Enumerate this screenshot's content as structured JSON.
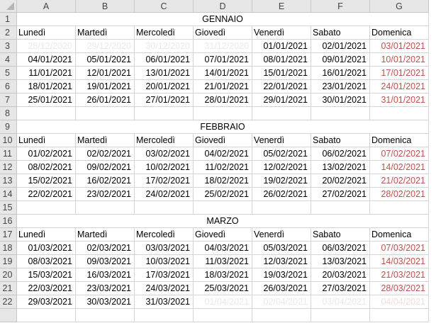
{
  "columns": [
    "A",
    "B",
    "C",
    "D",
    "E",
    "F",
    "G"
  ],
  "weekdays": [
    "Lunedì",
    "Martedì",
    "Mercoledì",
    "Giovedì",
    "Venerdì",
    "Sabato",
    "Domenica"
  ],
  "colors": {
    "sunday_text": "#c0504d",
    "out_of_month_text": "#e9e9e9",
    "gridline": "#d4d4d4",
    "header_bg": "#e6e6e6"
  },
  "months": [
    {
      "name": "GENNAIO",
      "title_row": 1,
      "header_row": 2,
      "weeks": [
        {
          "row": 3,
          "dates": [
            "28/12/2020",
            "29/12/2020",
            "30/12/2020",
            "31/12/2020",
            "01/01/2021",
            "02/01/2021",
            "03/01/2021"
          ],
          "faded": [
            true,
            true,
            true,
            true,
            false,
            false,
            false
          ]
        },
        {
          "row": 4,
          "dates": [
            "04/01/2021",
            "05/01/2021",
            "06/01/2021",
            "07/01/2021",
            "08/01/2021",
            "09/01/2021",
            "10/01/2021"
          ],
          "faded": [
            false,
            false,
            false,
            false,
            false,
            false,
            false
          ]
        },
        {
          "row": 5,
          "dates": [
            "11/01/2021",
            "12/01/2021",
            "13/01/2021",
            "14/01/2021",
            "15/01/2021",
            "16/01/2021",
            "17/01/2021"
          ],
          "faded": [
            false,
            false,
            false,
            false,
            false,
            false,
            false
          ]
        },
        {
          "row": 6,
          "dates": [
            "18/01/2021",
            "19/01/2021",
            "20/01/2021",
            "21/01/2021",
            "22/01/2021",
            "23/01/2021",
            "24/01/2021"
          ],
          "faded": [
            false,
            false,
            false,
            false,
            false,
            false,
            false
          ]
        },
        {
          "row": 7,
          "dates": [
            "25/01/2021",
            "26/01/2021",
            "27/01/2021",
            "28/01/2021",
            "29/01/2021",
            "30/01/2021",
            "31/01/2021"
          ],
          "faded": [
            false,
            false,
            false,
            false,
            false,
            false,
            false
          ]
        }
      ],
      "blank_rows": [
        8
      ]
    },
    {
      "name": "FEBBRAIO",
      "title_row": 9,
      "header_row": 10,
      "weeks": [
        {
          "row": 11,
          "dates": [
            "01/02/2021",
            "02/02/2021",
            "03/02/2021",
            "04/02/2021",
            "05/02/2021",
            "06/02/2021",
            "07/02/2021"
          ],
          "faded": [
            false,
            false,
            false,
            false,
            false,
            false,
            false
          ]
        },
        {
          "row": 12,
          "dates": [
            "08/02/2021",
            "09/02/2021",
            "10/02/2021",
            "11/02/2021",
            "12/02/2021",
            "13/02/2021",
            "14/02/2021"
          ],
          "faded": [
            false,
            false,
            false,
            false,
            false,
            false,
            false
          ]
        },
        {
          "row": 13,
          "dates": [
            "15/02/2021",
            "16/02/2021",
            "17/02/2021",
            "18/02/2021",
            "19/02/2021",
            "20/02/2021",
            "21/02/2021"
          ],
          "faded": [
            false,
            false,
            false,
            false,
            false,
            false,
            false
          ]
        },
        {
          "row": 14,
          "dates": [
            "22/02/2021",
            "23/02/2021",
            "24/02/2021",
            "25/02/2021",
            "26/02/2021",
            "27/02/2021",
            "28/02/2021"
          ],
          "faded": [
            false,
            false,
            false,
            false,
            false,
            false,
            false
          ]
        }
      ],
      "blank_rows": [
        15
      ]
    },
    {
      "name": "MARZO",
      "title_row": 16,
      "header_row": 17,
      "weeks": [
        {
          "row": 18,
          "dates": [
            "01/03/2021",
            "02/03/2021",
            "03/03/2021",
            "04/03/2021",
            "05/03/2021",
            "06/03/2021",
            "07/03/2021"
          ],
          "faded": [
            false,
            false,
            false,
            false,
            false,
            false,
            false
          ]
        },
        {
          "row": 19,
          "dates": [
            "08/03/2021",
            "09/03/2021",
            "10/03/2021",
            "11/03/2021",
            "12/03/2021",
            "13/03/2021",
            "14/03/2021"
          ],
          "faded": [
            false,
            false,
            false,
            false,
            false,
            false,
            false
          ]
        },
        {
          "row": 20,
          "dates": [
            "15/03/2021",
            "16/03/2021",
            "17/03/2021",
            "18/03/2021",
            "19/03/2021",
            "20/03/2021",
            "21/03/2021"
          ],
          "faded": [
            false,
            false,
            false,
            false,
            false,
            false,
            false
          ]
        },
        {
          "row": 21,
          "dates": [
            "22/03/2021",
            "23/03/2021",
            "24/03/2021",
            "25/03/2021",
            "26/03/2021",
            "27/03/2021",
            "28/03/2021"
          ],
          "faded": [
            false,
            false,
            false,
            false,
            false,
            false,
            false
          ]
        },
        {
          "row": 22,
          "dates": [
            "29/03/2021",
            "30/03/2021",
            "31/03/2021",
            "01/04/2021",
            "02/04/2021",
            "03/04/2021",
            "04/04/2021"
          ],
          "faded": [
            false,
            false,
            false,
            true,
            true,
            true,
            true
          ]
        }
      ],
      "blank_rows": []
    }
  ],
  "row_numbers": [
    1,
    2,
    3,
    4,
    5,
    6,
    7,
    8,
    9,
    10,
    11,
    12,
    13,
    14,
    15,
    16,
    17,
    18,
    19,
    20,
    21,
    22
  ]
}
